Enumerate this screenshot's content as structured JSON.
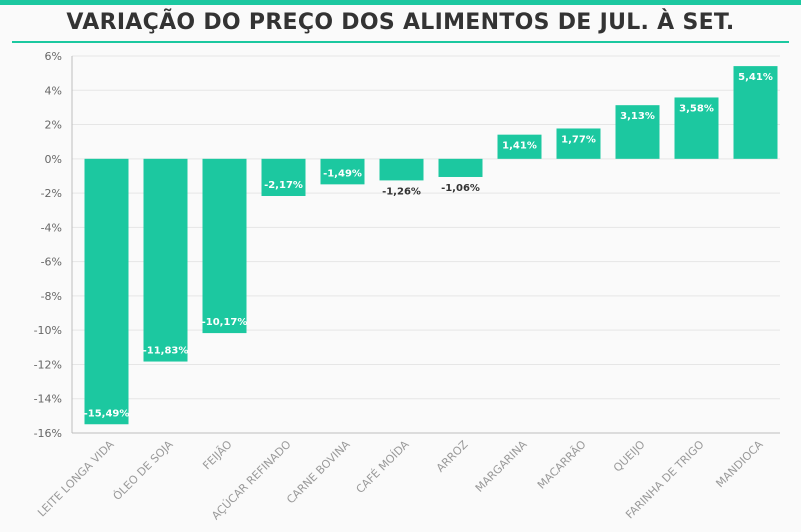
{
  "chart_data": {
    "type": "bar",
    "title": "VARIAÇÃO DO PREÇO DOS ALIMENTOS DE JUL. À SET.",
    "categories": [
      "LEITE LONGA VIDA",
      "ÓLEO DE SOJA",
      "FEIJÃO",
      "AÇÚCAR REFINADO",
      "CARNE BOVINA",
      "CAFÉ MOÍDA",
      "ARROZ",
      "MARGARINA",
      "MACARRÃO",
      "QUEIJO",
      "FARINHA DE TRIGO",
      "MANDIOCA"
    ],
    "values": [
      -15.49,
      -11.83,
      -10.17,
      -2.17,
      -1.49,
      -1.26,
      -1.06,
      1.41,
      1.77,
      3.13,
      3.58,
      5.41
    ],
    "data_labels": [
      "-15,49%",
      "-11,83%",
      "-10,17%",
      "-2,17%",
      "-1,49%",
      "-1,26%",
      "-1,06%",
      "1,41%",
      "1,77%",
      "3,13%",
      "3,58%",
      "5,41%"
    ],
    "yticks": [
      "6%",
      "4%",
      "2%",
      "0%",
      "-2%",
      "-4%",
      "-6%",
      "-8%",
      "-10%",
      "-12%",
      "-14%",
      "-16%"
    ],
    "ylim": [
      -16,
      6
    ],
    "xlabel": "",
    "ylabel": "",
    "grid": true,
    "legend": "none",
    "colors": {
      "bar": "#1cc8a0",
      "accent": "#1cc8a0"
    }
  }
}
